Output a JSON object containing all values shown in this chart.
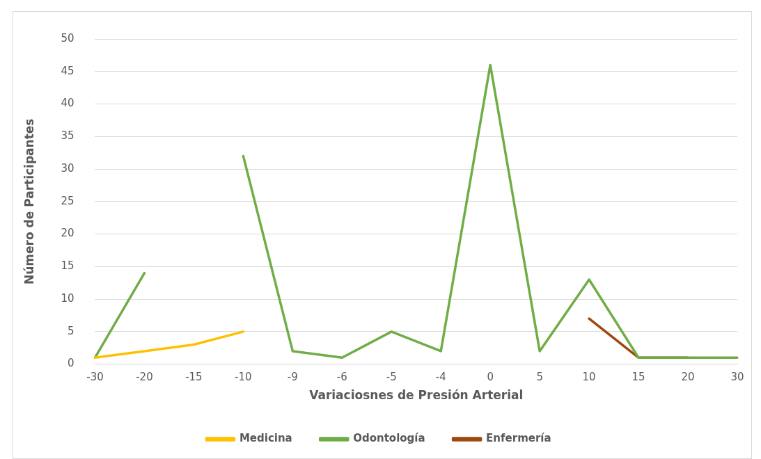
{
  "chart_data": {
    "type": "line",
    "xlabel": "Variaciosnes de Presión Arterial",
    "ylabel": "Número de Participantes",
    "categories": [
      "-30",
      "-20",
      "-15",
      "-10",
      "-9",
      "-6",
      "-5",
      "-4",
      "0",
      "5",
      "10",
      "15",
      "20",
      "30"
    ],
    "series": [
      {
        "name": "Medicina",
        "color": "#ffc000",
        "values": [
          1,
          2,
          3,
          5,
          null,
          null,
          null,
          null,
          null,
          null,
          null,
          null,
          null,
          null
        ]
      },
      {
        "name": "Odontología",
        "color": "#70ad47",
        "values": [
          1,
          14,
          null,
          32,
          2,
          1,
          5,
          2,
          46,
          2,
          13,
          1,
          1,
          1
        ]
      },
      {
        "name": "Enfermería",
        "color": "#9e480e",
        "values": [
          null,
          null,
          null,
          null,
          null,
          null,
          null,
          null,
          null,
          null,
          7,
          1,
          1,
          null
        ]
      }
    ],
    "ylim": [
      0,
      50
    ],
    "yticks": [
      0,
      5,
      10,
      15,
      20,
      25,
      30,
      35,
      40,
      45,
      50
    ],
    "grid": "y",
    "legend": "bottom",
    "marker": "none",
    "line_style": "solid"
  }
}
